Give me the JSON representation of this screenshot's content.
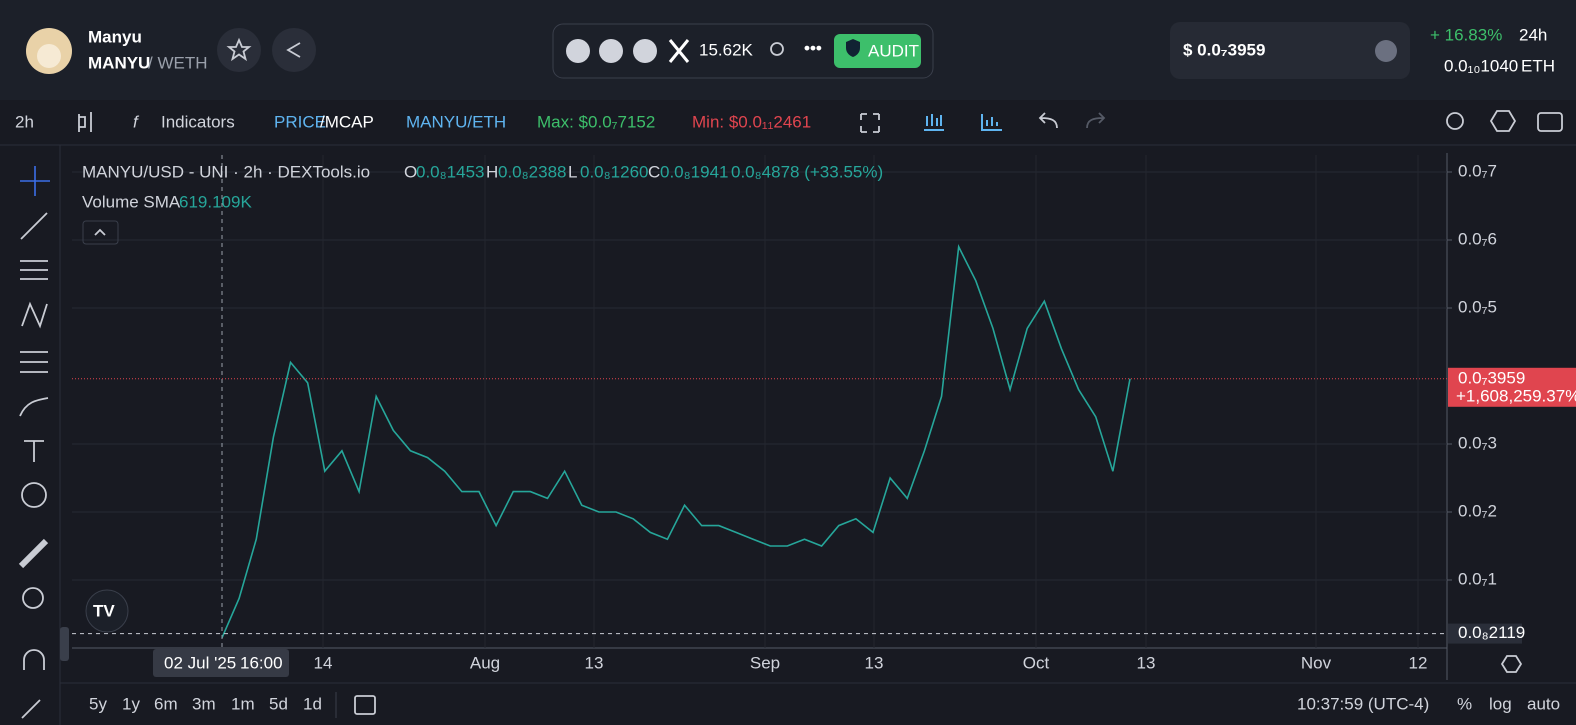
{
  "header": {
    "token_name": "Manyu",
    "pair_base": "MANYU",
    "pair_quote": "/ WETH",
    "followers": "15.62K",
    "audit": "AUDIT",
    "price": "$ 0.0₇3959",
    "change": "+ 16.83%",
    "period": "24h",
    "price_eth": "0.0₁₀1040",
    "eth_unit": "ETH"
  },
  "toolbar": {
    "interval": "2h",
    "indicators": "Indicators",
    "price": "PRICE",
    "mcap": "/MCAP",
    "pair": "MANYU/ETH",
    "max": "Max: $0.0₇7152",
    "min": "Min: $0.0₁₁2461"
  },
  "legend": {
    "title": "MANYU/USD - UNI · 2h · DEXTools.io",
    "open_label": "O",
    "open": "0.0₈1453",
    "high_label": "H",
    "high": "0.0₈2388",
    "low_label": "L",
    "low": "0.0₈1260",
    "close_label": "C",
    "close": "0.0₈1941",
    "change": "0.0₈4878 (+33.55%)",
    "volume_label": "Volume SMA",
    "volume": "619.109K"
  },
  "chart": {
    "ylim": [
      0,
      7.25e-08
    ],
    "yticks": [
      {
        "value": 1e-08,
        "label": "0.0₇1"
      },
      {
        "value": 2e-08,
        "label": "0.0₇2"
      },
      {
        "value": 3e-08,
        "label": "0.0₇3"
      },
      {
        "value": 5e-08,
        "label": "0.0₇5"
      },
      {
        "value": 6e-08,
        "label": "0.0₇6"
      },
      {
        "value": 7e-08,
        "label": "0.0₇7"
      }
    ],
    "close_values": [
      1.5e-09,
      7.3e-09,
      1.6e-08,
      3.1e-08,
      4.2e-08,
      3.9e-08,
      2.6e-08,
      2.9e-08,
      2.3e-08,
      3.7e-08,
      3.2e-08,
      2.9e-08,
      2.8e-08,
      2.6e-08,
      2.3e-08,
      2.3e-08,
      1.8e-08,
      2.3e-08,
      2.3e-08,
      2.2e-08,
      2.6e-08,
      2.1e-08,
      2e-08,
      2e-08,
      1.9e-08,
      1.7e-08,
      1.6e-08,
      2.1e-08,
      1.8e-08,
      1.8e-08,
      1.7e-08,
      1.6e-08,
      1.5e-08,
      1.5e-08,
      1.6e-08,
      1.5e-08,
      1.8e-08,
      1.9e-08,
      1.7e-08,
      2.5e-08,
      2.2e-08,
      2.9e-08,
      3.7e-08,
      5.9e-08,
      5.4e-08,
      4.7e-08,
      3.8e-08,
      4.7e-08,
      5.1e-08,
      4.4e-08,
      3.8e-08,
      3.4e-08,
      2.6e-08,
      3.959e-08
    ],
    "last_price": {
      "value": 3.959e-08,
      "label": "0.0₇3959"
    },
    "last_change": "+1,608,259.37%",
    "level": {
      "value": 2.119e-09,
      "label": "0.0₈2119"
    },
    "xticks": [
      "14",
      "Aug",
      "13",
      "Sep",
      "13",
      "Oct",
      "13",
      "Nov",
      "12"
    ],
    "crosshair_date": "02 Jul '25",
    "crosshair_time": "16:00"
  },
  "footer": {
    "ranges": [
      "5y",
      "1y",
      "6m",
      "3m",
      "1m",
      "5d",
      "1d"
    ],
    "clock": "10:37:59 (UTC-4)",
    "percent": "%",
    "log": "log",
    "auto": "auto"
  }
}
